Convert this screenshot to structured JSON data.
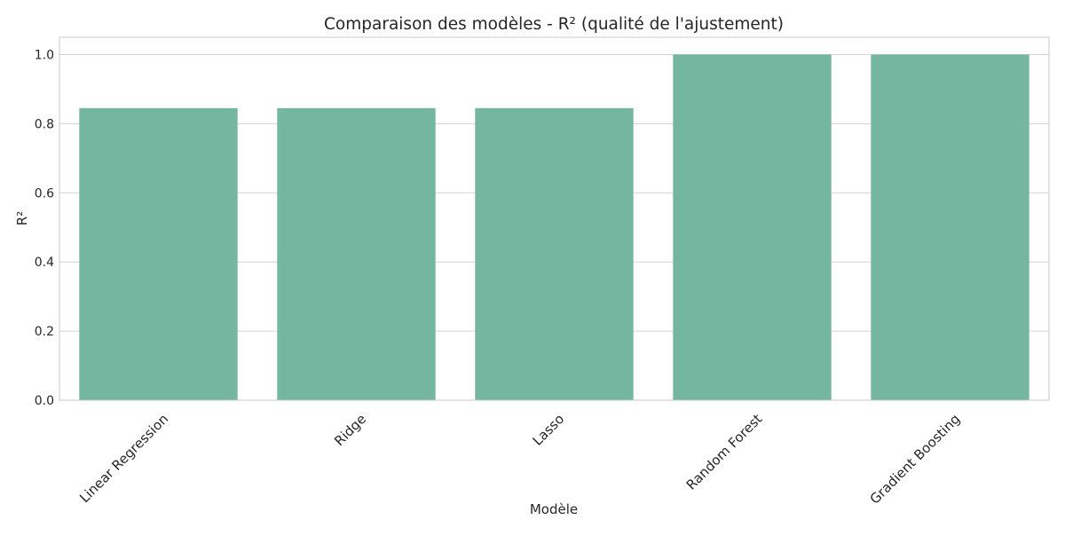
{
  "chart_data": {
    "type": "bar",
    "title": "Comparaison des modèles - R² (qualité de l'ajustement)",
    "xlabel": "Modèle",
    "ylabel": "R²",
    "categories": [
      "Linear Regression",
      "Ridge",
      "Lasso",
      "Random Forest",
      "Gradient Boosting"
    ],
    "values": [
      0.845,
      0.845,
      0.845,
      1.0,
      1.0
    ],
    "ylim": [
      0,
      1.05
    ],
    "yticks": [
      0.0,
      0.2,
      0.4,
      0.6,
      0.8,
      1.0
    ],
    "ytick_labels": [
      "0.0",
      "0.2",
      "0.4",
      "0.6",
      "0.8",
      "1.0"
    ],
    "grid": true,
    "bar_color": "#74b6a0",
    "grid_color": "#d3d3d3",
    "axis_color": "#c8c8c8",
    "text_color": "#262626"
  }
}
